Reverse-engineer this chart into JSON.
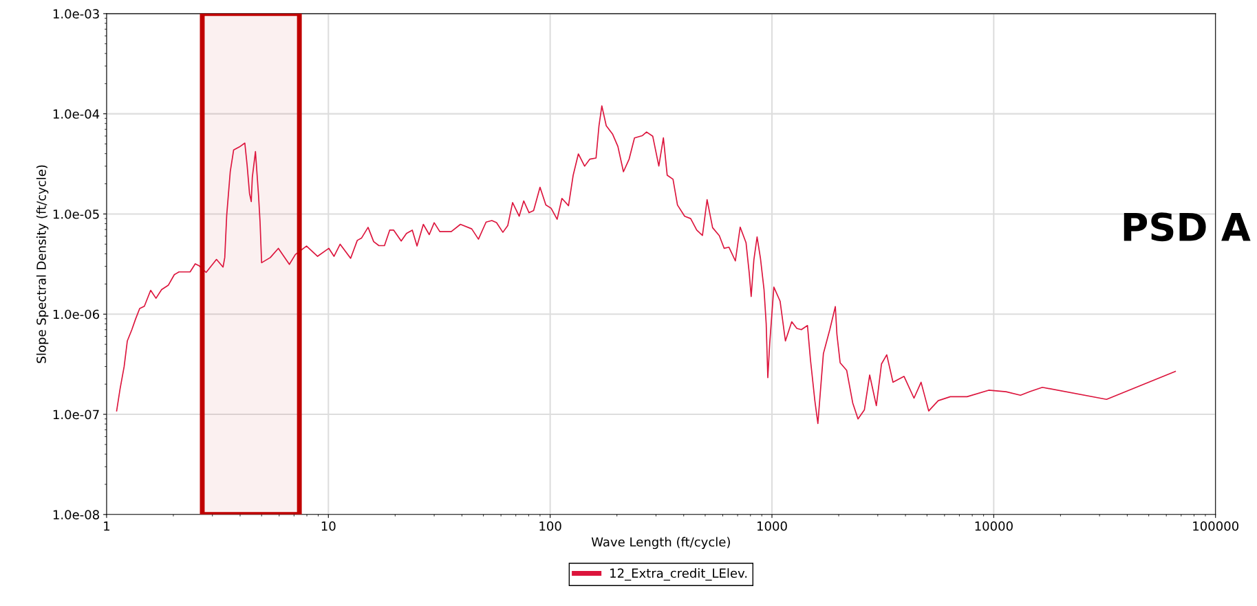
{
  "chart_data": {
    "type": "line",
    "xlabel": "Wave Length (ft/cycle)",
    "ylabel": "Slope Spectral Density (ft/cycle)",
    "log": "xy",
    "grid": true,
    "legend": "bottom",
    "marker": "none",
    "line_style": "solid",
    "xlim": [
      1,
      100000
    ],
    "xticks": [
      1,
      10,
      100,
      1000,
      10000,
      100000
    ],
    "ylim": [
      1e-08,
      0.001
    ],
    "yticks": [
      {
        "value": 1e-08,
        "label": "1.0e-08"
      },
      {
        "value": 1e-07,
        "label": "1.0e-07"
      },
      {
        "value": 1e-06,
        "label": "1.0e-06"
      },
      {
        "value": 1e-05,
        "label": "1.0e-05"
      },
      {
        "value": 0.0001,
        "label": "1.0e-04"
      },
      {
        "value": 0.001,
        "label": "1.0e-03"
      }
    ],
    "bands": [
      {
        "axis": "x",
        "from": 2.7,
        "to": 7.4,
        "color": "#c00000"
      }
    ],
    "annotations": [
      "PSD A"
    ],
    "series": [
      {
        "name": "12_Extra_credit_LElev.",
        "color": "#dc143c",
        "x": [
          1.11,
          1.15,
          1.2,
          1.24,
          1.3,
          1.35,
          1.41,
          1.48,
          1.58,
          1.67,
          1.77,
          1.9,
          2.02,
          2.12,
          2.38,
          2.51,
          2.62,
          2.81,
          3.13,
          3.35,
          3.41,
          3.48,
          3.61,
          3.74,
          3.97,
          4.2,
          4.3,
          4.41,
          4.49,
          4.54,
          4.69,
          4.84,
          4.92,
          5.0,
          5.47,
          5.95,
          6.67,
          7.1,
          7.97,
          8.94,
          10.05,
          10.6,
          11.3,
          12.6,
          13.5,
          14.1,
          15.1,
          16.0,
          16.9,
          17.9,
          18.9,
          19.7,
          21.3,
          22.5,
          23.9,
          25.1,
          26.8,
          28.5,
          30.0,
          31.8,
          35.8,
          39.4,
          44.3,
          47.5,
          51.4,
          54.6,
          57.3,
          61.2,
          64.4,
          67.7,
          72.5,
          76.0,
          80.3,
          84.2,
          90.0,
          95.6,
          101,
          107.5,
          113,
          121,
          127,
          134,
          143,
          151,
          161,
          166,
          171,
          179,
          191,
          202,
          214,
          227,
          240,
          260,
          272,
          290,
          309,
          324,
          337,
          358,
          375,
          404,
          430,
          458,
          486,
          510,
          540,
          579,
          609,
          640,
          684,
          719,
          764,
          790,
          806,
          829,
          857,
          888,
          921,
          942,
          958,
          977,
          1020,
          1088,
          1150,
          1228,
          1295,
          1357,
          1446,
          1491,
          1561,
          1611,
          1657,
          1706,
          1823,
          1931,
          1963,
          2030,
          2172,
          2313,
          2444,
          2611,
          2758,
          2956,
          3118,
          3293,
          3514,
          3942,
          4370,
          4703,
          5090,
          5620,
          6370,
          7580,
          9490,
          11360,
          13200,
          14600,
          16570,
          32260,
          65900
        ],
        "values": [
          1.08e-07,
          1.79e-07,
          3e-07,
          5.4e-07,
          7e-07,
          8.9e-07,
          1.14e-06,
          1.2e-06,
          1.73e-06,
          1.44e-06,
          1.76e-06,
          1.95e-06,
          2.48e-06,
          2.64e-06,
          2.64e-06,
          3.18e-06,
          3.03e-06,
          2.61e-06,
          3.52e-06,
          2.95e-06,
          3.67e-06,
          9.7e-06,
          2.64e-05,
          4.36e-05,
          4.67e-05,
          5.1e-05,
          3.1e-05,
          1.6e-05,
          1.33e-05,
          2.32e-05,
          4.2e-05,
          1.56e-05,
          8.3e-06,
          3.26e-06,
          3.67e-06,
          4.54e-06,
          3.14e-06,
          3.94e-06,
          4.79e-06,
          3.78e-06,
          4.54e-06,
          3.78e-06,
          4.99e-06,
          3.61e-06,
          5.45e-06,
          5.74e-06,
          7.36e-06,
          5.3e-06,
          4.83e-06,
          4.83e-06,
          6.9e-06,
          6.9e-06,
          5.37e-06,
          6.4e-06,
          6.9e-06,
          4.79e-06,
          7.88e-06,
          6.22e-06,
          8.18e-06,
          6.67e-06,
          6.67e-06,
          7.88e-06,
          7.1e-06,
          5.6e-06,
          8.3e-06,
          8.6e-06,
          8.2e-06,
          6.56e-06,
          7.68e-06,
          1.3e-05,
          9.5e-06,
          1.35e-05,
          1.03e-05,
          1.08e-05,
          1.85e-05,
          1.23e-05,
          1.14e-05,
          8.85e-06,
          1.43e-05,
          1.21e-05,
          2.44e-05,
          3.98e-05,
          3e-05,
          3.53e-05,
          3.62e-05,
          7.6e-05,
          0.00012,
          7.6e-05,
          6.3e-05,
          4.72e-05,
          2.64e-05,
          3.53e-05,
          5.75e-05,
          6.04e-05,
          6.58e-05,
          5.98e-05,
          3.01e-05,
          5.75e-05,
          2.44e-05,
          2.22e-05,
          1.23e-05,
          9.5e-06,
          9e-06,
          6.9e-06,
          6.1e-06,
          1.39e-05,
          7.3e-06,
          6.07e-06,
          4.54e-06,
          4.66e-06,
          3.4e-06,
          7.4e-06,
          5.17e-06,
          2.56e-06,
          1.5e-06,
          3.49e-06,
          5.9e-06,
          3.58e-06,
          1.76e-06,
          8e-07,
          2.32e-07,
          5.1e-07,
          1.86e-06,
          1.35e-06,
          5.4e-07,
          8.4e-07,
          7.2e-07,
          7e-07,
          7.7e-07,
          3.54e-07,
          1.37e-07,
          8.1e-08,
          1.79e-07,
          4.04e-07,
          7e-07,
          1.19e-06,
          6.3e-07,
          3.27e-07,
          2.75e-07,
          1.3e-07,
          9e-08,
          1.11e-07,
          2.47e-07,
          1.22e-07,
          3.18e-07,
          3.93e-07,
          2.09e-07,
          2.39e-07,
          1.45e-07,
          2.09e-07,
          1.08e-07,
          1.37e-07,
          1.5e-07,
          1.5e-07,
          1.74e-07,
          1.68e-07,
          1.55e-07,
          1.69e-07,
          1.86e-07,
          1.41e-07,
          2.68e-07
        ]
      }
    ]
  }
}
